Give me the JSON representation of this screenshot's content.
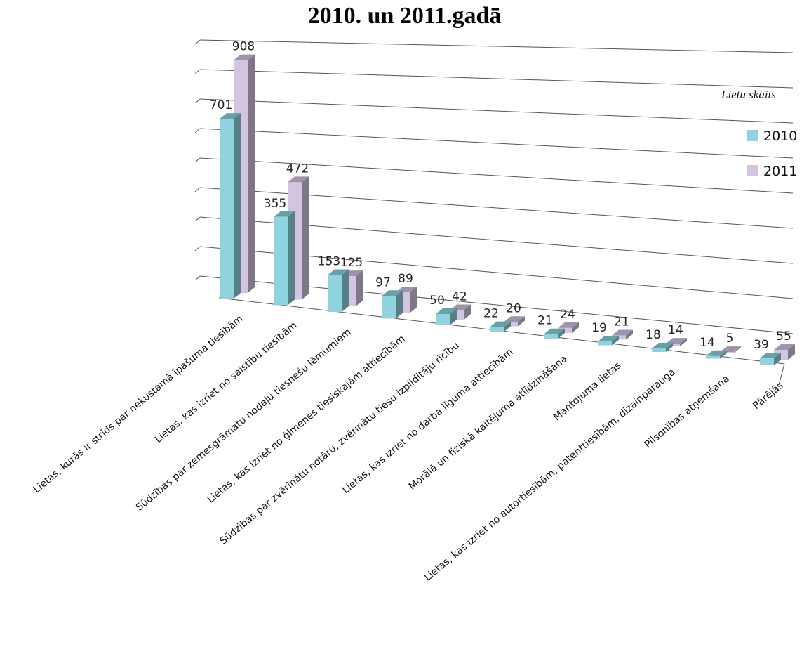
{
  "chart_data": {
    "type": "bar",
    "title": "2010. un 2011.gadā",
    "ylabel": "Lietu skaits",
    "categories": [
      "Lietas, kurās ir strīds par nekustamā īpašuma tiesībām",
      "Lietas, kas izriet no saistību tiesībām",
      "Sūdzības par zemesgrāmatu nodaļu tiesnešu lēmumiem",
      "Lietas, kas izriet no ģimenes tiesiskajām attiecībām",
      "Sūdzības par zvērinātu notāru, zvērinātu tiesu izpildītāju rīcību",
      "Lietas, kas izriet no darba līguma attiecībām",
      "Morālā un fiziskā kaitējuma atlīdzināšana",
      "Mantojuma lietas",
      "Lietas, kas izriet no autortiesībām, patenttiesībām, dizainparauga",
      "Pilsonības atņemšana",
      "Pārējās"
    ],
    "series": [
      {
        "name": "2010",
        "values": [
          701,
          355,
          153,
          97,
          50,
          22,
          21,
          19,
          18,
          14,
          39
        ]
      },
      {
        "name": "2011",
        "values": [
          908,
          472,
          125,
          89,
          42,
          20,
          24,
          21,
          14,
          5,
          55
        ]
      }
    ],
    "legend_position": "right",
    "grid": true,
    "colors": {
      "2010": "#8fd3df",
      "2011": "#d3c5e2"
    }
  }
}
